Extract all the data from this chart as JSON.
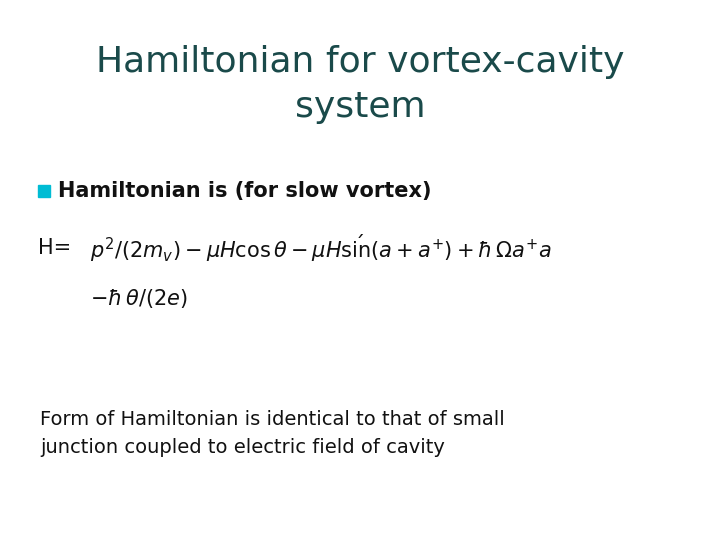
{
  "title_line1": "Hamiltonian for vortex-cavity",
  "title_line2": "system",
  "title_color": "#1a4a4a",
  "title_fontsize": 26,
  "bg_color": "#ffffff",
  "bullet_color": "#00bcd4",
  "bullet_text": "Hamiltonian is (for slow vortex)",
  "bullet_fontsize": 15,
  "h_label": "H=",
  "eq_fontsize": 15,
  "footer_text": "Form of Hamiltonian is identical to that of small\njunction coupled to electric field of cavity",
  "footer_fontsize": 14,
  "footer_color": "#111111"
}
